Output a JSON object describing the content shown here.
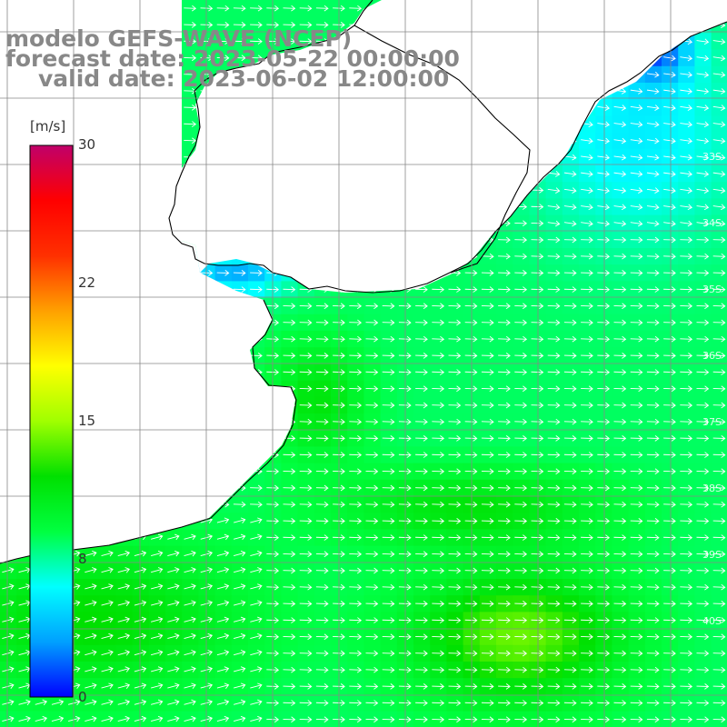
{
  "title": {
    "line1": "modelo GEFS-WAVE (NCEP)",
    "line2": "forecast date: 2023-05-22 00:00:00",
    "line3": "valid date: 2023-06-02 12:00:00"
  },
  "colorbar": {
    "unit": "[m/s]",
    "ticks": [
      "30",
      "22",
      "15",
      "8",
      "0"
    ],
    "tick_values": [
      30,
      22,
      15,
      8,
      0
    ],
    "range": [
      0,
      30
    ],
    "stops": [
      "#0000ff",
      "#00a0ff",
      "#00ffff",
      "#00ff40",
      "#00e000",
      "#a0ff00",
      "#ffff00",
      "#ffa000",
      "#ff3000",
      "#ff0000",
      "#c0006a"
    ]
  },
  "lat_labels": [
    "33S",
    "34S",
    "35S",
    "36S",
    "37S",
    "38S",
    "39S",
    "40S"
  ],
  "colors": {
    "land": "#ffffff",
    "coast": "#000000",
    "grid": "#888888",
    "title": "#888888",
    "arrow": "#ffffff"
  },
  "vector_field": "arrows"
}
